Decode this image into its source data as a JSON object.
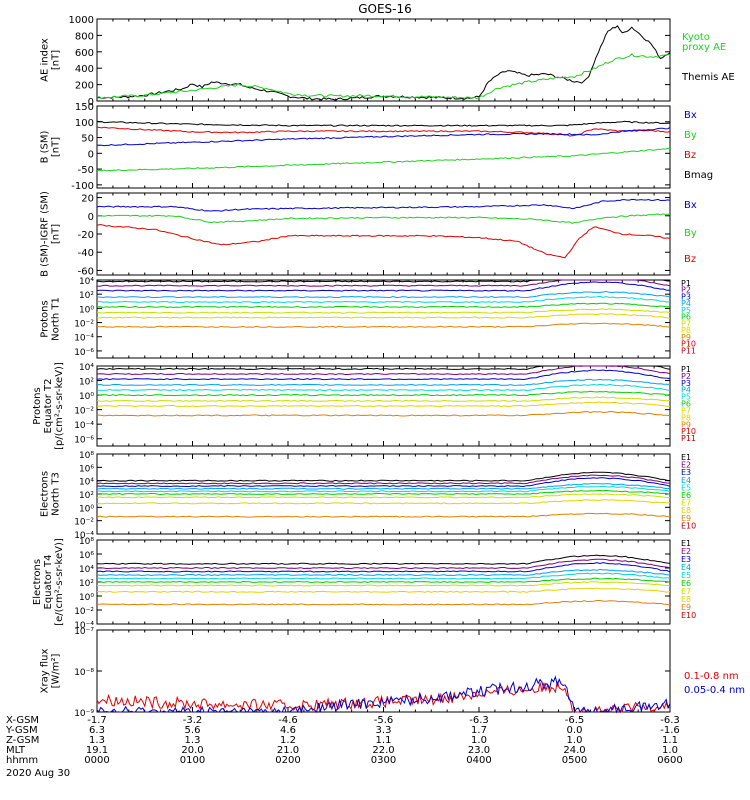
{
  "title": "GOES-16",
  "date": "2020 Aug 30",
  "colors": {
    "black": "#000000",
    "green": "#1fd01f",
    "blue": "#0000cc",
    "red": "#e00000",
    "p_channels": [
      "#000000",
      "#7a007a",
      "#0000cc",
      "#00a0ff",
      "#00d8d8",
      "#00d000",
      "#c8e000",
      "#e8d000",
      "#e08000",
      "#e00000",
      "#c00000"
    ],
    "e_channels": [
      "#000000",
      "#7a007a",
      "#0000cc",
      "#00a0ff",
      "#00d8d8",
      "#00d000",
      "#c8e000",
      "#e8d000",
      "#e08000",
      "#c00000"
    ]
  },
  "footer": {
    "row_labels": [
      "X-GSM",
      "Y-GSM",
      "Z-GSM",
      "MLT",
      "hhmm"
    ],
    "columns": [
      [
        "-1.7",
        "6.3",
        "1.3",
        "19.1",
        "0000"
      ],
      [
        "-3.2",
        "5.6",
        "1.3",
        "20.0",
        "0100"
      ],
      [
        "-4.6",
        "4.6",
        "1.2",
        "21.0",
        "0200"
      ],
      [
        "-5.6",
        "3.3",
        "1.1",
        "22.0",
        "0300"
      ],
      [
        "-6.3",
        "1.7",
        "1.0",
        "23.0",
        "0400"
      ],
      [
        "-6.5",
        "0.0",
        "1.0",
        "24.0",
        "0500"
      ],
      [
        "-6.3",
        "-1.6",
        "1.1",
        "1.0",
        "0600"
      ]
    ]
  },
  "chart_data": [
    {
      "type": "line",
      "title": "AE index",
      "ylabel": [
        "AE index",
        "[nT]"
      ],
      "ylim": [
        0,
        1000
      ],
      "yticks": [
        0,
        200,
        400,
        600,
        800,
        1000
      ],
      "xlim_hours": [
        0,
        6
      ],
      "legend": [
        {
          "text": "Kyoto",
          "color": "#1fd01f"
        },
        {
          "text": "proxy AE",
          "color": "#1fd01f"
        },
        {
          "text": "Themis AE",
          "color": "#000000"
        }
      ],
      "series": [
        {
          "name": "Themis AE",
          "color": "#000000",
          "x": [
            0,
            0.3,
            0.5,
            0.7,
            0.9,
            1.0,
            1.1,
            1.2,
            1.3,
            1.5,
            1.6,
            1.8,
            2.0,
            2.2,
            2.5,
            2.8,
            3.0,
            3.3,
            3.6,
            3.9,
            4.0,
            4.1,
            4.2,
            4.3,
            4.5,
            4.7,
            4.8,
            4.9,
            5.0,
            5.1,
            5.15,
            5.25,
            5.35,
            5.45,
            5.5,
            5.6,
            5.7,
            5.8,
            5.9,
            6.0
          ],
          "values": [
            40,
            50,
            70,
            110,
            150,
            210,
            170,
            230,
            220,
            200,
            160,
            120,
            60,
            30,
            20,
            45,
            60,
            50,
            40,
            35,
            50,
            230,
            320,
            370,
            310,
            330,
            300,
            270,
            240,
            230,
            310,
            600,
            850,
            920,
            820,
            900,
            800,
            700,
            520,
            600
          ]
        },
        {
          "name": "Kyoto proxy AE",
          "color": "#1fd01f",
          "x": [
            0,
            0.5,
            1.0,
            1.5,
            1.8,
            2.0,
            2.2,
            2.5,
            2.8,
            3.0,
            3.5,
            3.9,
            4.0,
            4.2,
            4.5,
            4.8,
            5.0,
            5.2,
            5.4,
            5.6,
            5.8,
            6.0
          ],
          "values": [
            40,
            70,
            130,
            200,
            150,
            90,
            70,
            60,
            65,
            60,
            50,
            40,
            40,
            160,
            230,
            280,
            300,
            390,
            500,
            560,
            540,
            560
          ]
        }
      ]
    },
    {
      "type": "line",
      "title": "B (SM)",
      "ylabel": [
        "B (SM)",
        "[nT]"
      ],
      "ylim": [
        -110,
        150
      ],
      "yticks": [
        -100,
        -50,
        0,
        50,
        100,
        150
      ],
      "legend": [
        {
          "text": "Bx",
          "color": "#0000cc"
        },
        {
          "text": "By",
          "color": "#1fd01f"
        },
        {
          "text": "Bz",
          "color": "#e00000"
        },
        {
          "text": "Bmag",
          "color": "#000000"
        }
      ],
      "series": [
        {
          "name": "Bmag",
          "color": "#000000",
          "x": [
            0,
            1,
            2,
            3,
            4,
            4.9,
            5.2,
            5.5,
            6.0
          ],
          "values": [
            100,
            92,
            88,
            88,
            88,
            88,
            95,
            100,
            95
          ]
        },
        {
          "name": "Bz",
          "color": "#e00000",
          "x": [
            0,
            0.5,
            1.0,
            1.5,
            2,
            3,
            4,
            4.6,
            5.0,
            5.2,
            5.5,
            5.8,
            6.0
          ],
          "values": [
            83,
            75,
            68,
            66,
            70,
            70,
            70,
            65,
            55,
            78,
            70,
            72,
            68
          ]
        },
        {
          "name": "Bx",
          "color": "#0000cc",
          "x": [
            0,
            1,
            2,
            3,
            4,
            4.8,
            5.2,
            5.5,
            6.0
          ],
          "values": [
            25,
            35,
            45,
            53,
            60,
            62,
            58,
            70,
            80
          ]
        },
        {
          "name": "By",
          "color": "#1fd01f",
          "x": [
            0,
            1,
            2,
            3,
            4,
            5,
            6.0
          ],
          "values": [
            -55,
            -48,
            -38,
            -28,
            -18,
            -8,
            15
          ]
        }
      ]
    },
    {
      "type": "line",
      "title": "B (SM)-IGRF (SM)",
      "ylabel": [
        "B (SM)-IGRF (SM)",
        "[nT]"
      ],
      "ylim": [
        -65,
        25
      ],
      "yticks": [
        -60,
        -40,
        -20,
        0,
        20
      ],
      "legend": [
        {
          "text": "Bx",
          "color": "#0000cc"
        },
        {
          "text": "By",
          "color": "#1fd01f"
        },
        {
          "text": "Bz",
          "color": "#e00000"
        }
      ],
      "series": [
        {
          "name": "Bx",
          "color": "#0000cc",
          "x": [
            0,
            0.8,
            1.2,
            1.5,
            2,
            3,
            4,
            4.7,
            5.0,
            5.3,
            5.6,
            6.0
          ],
          "values": [
            10,
            10,
            5,
            7,
            8,
            9,
            10,
            12,
            8,
            16,
            18,
            17
          ]
        },
        {
          "name": "By",
          "color": "#1fd01f",
          "x": [
            0,
            0.8,
            1.2,
            1.5,
            2,
            3,
            4,
            4.6,
            5.0,
            5.3,
            5.6,
            6.0
          ],
          "values": [
            0,
            0,
            -7,
            -6,
            -3,
            -2,
            -2,
            -4,
            -8,
            -2,
            0,
            2
          ]
        },
        {
          "name": "Bz",
          "color": "#e00000",
          "x": [
            0,
            0.6,
            1.0,
            1.3,
            1.7,
            2.0,
            2.5,
            3.0,
            3.5,
            4.0,
            4.4,
            4.7,
            4.9,
            5.05,
            5.2,
            5.5,
            5.8,
            6.0
          ],
          "values": [
            -10,
            -15,
            -25,
            -32,
            -28,
            -22,
            -22,
            -22,
            -22,
            -24,
            -28,
            -42,
            -46,
            -25,
            -12,
            -20,
            -22,
            -25
          ]
        }
      ]
    },
    {
      "type": "line",
      "scale": "log",
      "title": "Protons North T1",
      "ylabel": [
        "Protons",
        "North T1"
      ],
      "ylim_exp": [
        -7,
        4
      ],
      "ytick_labels": [
        "10⁴",
        "10²",
        "10⁰",
        "10⁻²",
        "10⁻⁴",
        "10⁻⁶"
      ],
      "channels": [
        "P1",
        "P2",
        "P3",
        "P4",
        "P5",
        "P6",
        "P7",
        "P8",
        "P9",
        "P10",
        "P11"
      ],
      "baseline_log10": [
        3.8,
        3.2,
        2.5,
        1.6,
        0.9,
        0.2,
        -0.6,
        -1.3,
        -2.6,
        null,
        null
      ]
    },
    {
      "type": "line",
      "scale": "log",
      "title": "Protons Equator T2",
      "ylabel": [
        "Protons",
        "Equator T2",
        "[p/(cm²-s-sr-keV)]"
      ],
      "ylim_exp": [
        -7,
        4
      ],
      "ytick_labels": [
        "10⁴",
        "10²",
        "10⁰",
        "10⁻²",
        "10⁻⁴",
        "10⁻⁶"
      ],
      "channels": [
        "P1",
        "P2",
        "P3",
        "P4",
        "P5",
        "P6",
        "P7",
        "P8",
        "P9",
        "P10",
        "P11"
      ],
      "baseline_log10": [
        3.6,
        2.9,
        2.2,
        1.4,
        0.7,
        0.0,
        -0.8,
        -1.5,
        -2.8,
        null,
        null
      ]
    },
    {
      "type": "line",
      "scale": "log",
      "title": "Electrons North T3",
      "ylabel": [
        "Electrons",
        "North T3"
      ],
      "ylim_exp": [
        -4,
        8
      ],
      "ytick_labels": [
        "10⁸",
        "10⁶",
        "10⁴",
        "10²",
        "10⁰",
        "10⁻²",
        "10⁻⁴"
      ],
      "channels": [
        "E1",
        "E2",
        "E3",
        "E4",
        "E5",
        "E6",
        "E7",
        "E8",
        "E9",
        "E10"
      ],
      "baseline_log10": [
        4.0,
        3.6,
        3.2,
        2.8,
        2.4,
        2.0,
        1.5,
        0.6,
        -1.4,
        null
      ]
    },
    {
      "type": "line",
      "scale": "log",
      "title": "Electrons Equator T4",
      "ylabel": [
        "Electrons",
        "Equator T4",
        "[e/(cm²-s-sr-keV)]"
      ],
      "ylim_exp": [
        -4,
        8
      ],
      "ytick_labels": [
        "10⁸",
        "10⁶",
        "10⁴",
        "10²",
        "10⁰",
        "10⁻²",
        "10⁻⁴"
      ],
      "channels": [
        "E1",
        "E2",
        "E3",
        "E4",
        "E5",
        "E6",
        "E7",
        "E8",
        "E9",
        "E10"
      ],
      "baseline_log10": [
        4.6,
        4.0,
        3.5,
        3.0,
        2.5,
        2.0,
        1.5,
        0.6,
        -1.2,
        null
      ]
    },
    {
      "type": "line",
      "scale": "log",
      "title": "Xray flux",
      "ylabel": [
        "Xray flux",
        "[W/m²]"
      ],
      "ylim_exp": [
        -9,
        -7
      ],
      "ytick_labels": [
        "10⁻⁷",
        "10⁻⁸",
        "10⁻⁹"
      ],
      "legend": [
        {
          "text": "0.1-0.8 nm",
          "color": "#e00000"
        },
        {
          "text": "0.05-0.4 nm",
          "color": "#0000cc"
        }
      ],
      "series": [
        {
          "name": "0.1-0.8 nm",
          "color": "#e00000",
          "x": [
            0,
            0.5,
            1.0,
            1.5,
            2.0,
            2.5,
            3.0,
            3.5,
            4.0,
            4.5,
            4.9,
            5.0,
            5.3,
            5.6,
            6.0
          ],
          "log10": [
            -8.7,
            -8.75,
            -8.8,
            -8.82,
            -8.85,
            -8.8,
            -8.75,
            -8.7,
            -8.55,
            -8.45,
            -8.35,
            -9.0,
            -9.0,
            -8.9,
            -8.8
          ]
        },
        {
          "name": "0.05-0.4 nm",
          "color": "#0000cc",
          "x": [
            0,
            0.5,
            1.0,
            1.5,
            2.0,
            2.5,
            3.0,
            3.5,
            4.0,
            4.5,
            4.9,
            5.0,
            5.3,
            5.6,
            6.0
          ],
          "log10": [
            -9.0,
            -9.0,
            -9.0,
            -9.0,
            -9.0,
            -8.85,
            -8.75,
            -8.65,
            -8.5,
            -8.35,
            -8.25,
            -9.0,
            -9.0,
            -8.9,
            -8.8
          ]
        }
      ]
    }
  ]
}
